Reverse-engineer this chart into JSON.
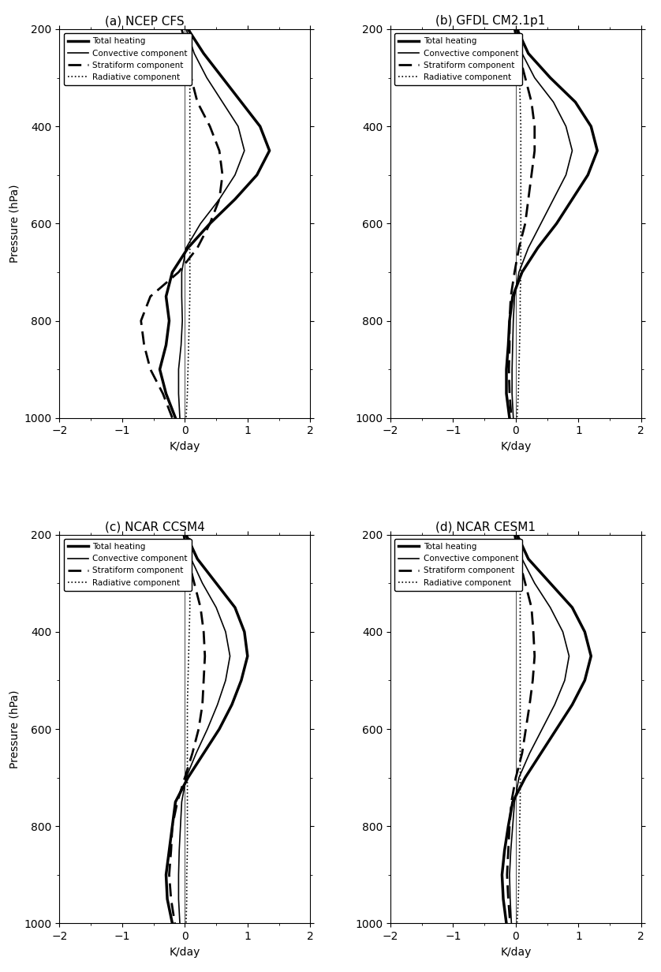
{
  "panels": [
    {
      "title": "(a) NCEP CFS",
      "pressure": [
        200,
        250,
        300,
        350,
        400,
        450,
        500,
        550,
        600,
        650,
        700,
        750,
        800,
        850,
        900,
        950,
        1000
      ],
      "total": [
        0.05,
        0.3,
        0.6,
        0.9,
        1.2,
        1.35,
        1.15,
        0.8,
        0.4,
        0.05,
        -0.2,
        -0.3,
        -0.25,
        -0.3,
        -0.4,
        -0.3,
        -0.15
      ],
      "convective": [
        0.02,
        0.15,
        0.35,
        0.6,
        0.85,
        0.95,
        0.8,
        0.55,
        0.25,
        0.02,
        -0.05,
        -0.05,
        -0.04,
        -0.06,
        -0.1,
        -0.1,
        -0.08
      ],
      "stratiform": [
        -0.05,
        0.05,
        0.1,
        0.2,
        0.4,
        0.55,
        0.6,
        0.55,
        0.4,
        0.2,
        -0.1,
        -0.55,
        -0.7,
        -0.65,
        -0.55,
        -0.35,
        -0.2
      ],
      "radiative": [
        0.08,
        0.08,
        0.08,
        0.08,
        0.08,
        0.08,
        0.08,
        0.08,
        0.08,
        0.08,
        0.08,
        0.08,
        0.07,
        0.06,
        0.05,
        0.04,
        0.02
      ]
    },
    {
      "title": "(b) GFDL CM2.1p1",
      "pressure": [
        200,
        250,
        300,
        350,
        400,
        450,
        500,
        550,
        600,
        650,
        700,
        750,
        800,
        850,
        900,
        950,
        1000
      ],
      "total": [
        0.02,
        0.2,
        0.55,
        0.95,
        1.2,
        1.3,
        1.15,
        0.9,
        0.65,
        0.35,
        0.1,
        -0.05,
        -0.1,
        -0.12,
        -0.15,
        -0.15,
        -0.1
      ],
      "convective": [
        0.01,
        0.1,
        0.3,
        0.6,
        0.8,
        0.9,
        0.8,
        0.6,
        0.4,
        0.2,
        0.05,
        -0.02,
        -0.04,
        -0.05,
        -0.06,
        -0.06,
        -0.04
      ],
      "stratiform": [
        -0.02,
        0.05,
        0.15,
        0.25,
        0.3,
        0.3,
        0.25,
        0.2,
        0.15,
        0.05,
        -0.02,
        -0.08,
        -0.1,
        -0.1,
        -0.11,
        -0.1,
        -0.07
      ],
      "radiative": [
        0.05,
        0.05,
        0.06,
        0.07,
        0.08,
        0.08,
        0.08,
        0.08,
        0.08,
        0.08,
        0.08,
        0.07,
        0.07,
        0.06,
        0.05,
        0.04,
        0.02
      ]
    },
    {
      "title": "(c) NCAR CCSM4",
      "pressure": [
        200,
        250,
        300,
        350,
        400,
        450,
        500,
        550,
        600,
        650,
        700,
        750,
        800,
        850,
        900,
        950,
        1000
      ],
      "total": [
        0.02,
        0.2,
        0.5,
        0.8,
        0.95,
        1.0,
        0.9,
        0.75,
        0.55,
        0.3,
        0.05,
        -0.15,
        -0.2,
        -0.25,
        -0.3,
        -0.28,
        -0.2
      ],
      "convective": [
        0.01,
        0.1,
        0.28,
        0.5,
        0.65,
        0.72,
        0.65,
        0.52,
        0.36,
        0.18,
        0.02,
        -0.05,
        -0.07,
        -0.09,
        -0.1,
        -0.1,
        -0.08
      ],
      "stratiform": [
        -0.02,
        0.05,
        0.15,
        0.25,
        0.3,
        0.32,
        0.3,
        0.28,
        0.22,
        0.12,
        0.0,
        -0.12,
        -0.2,
        -0.22,
        -0.25,
        -0.22,
        -0.16
      ],
      "radiative": [
        0.08,
        0.08,
        0.08,
        0.08,
        0.07,
        0.06,
        0.05,
        0.04,
        0.04,
        0.04,
        0.04,
        0.04,
        0.04,
        0.04,
        0.03,
        0.03,
        0.02
      ]
    },
    {
      "title": "(d) NCAR CESM1",
      "pressure": [
        200,
        250,
        300,
        350,
        400,
        450,
        500,
        550,
        600,
        650,
        700,
        750,
        800,
        850,
        900,
        950,
        1000
      ],
      "total": [
        0.02,
        0.2,
        0.55,
        0.9,
        1.1,
        1.2,
        1.1,
        0.9,
        0.65,
        0.4,
        0.15,
        -0.05,
        -0.12,
        -0.18,
        -0.22,
        -0.2,
        -0.15
      ],
      "convective": [
        0.01,
        0.1,
        0.3,
        0.55,
        0.75,
        0.85,
        0.78,
        0.62,
        0.42,
        0.22,
        0.05,
        -0.02,
        -0.05,
        -0.08,
        -0.1,
        -0.09,
        -0.07
      ],
      "stratiform": [
        -0.02,
        0.05,
        0.15,
        0.25,
        0.28,
        0.3,
        0.27,
        0.22,
        0.16,
        0.1,
        0.0,
        -0.07,
        -0.1,
        -0.12,
        -0.14,
        -0.12,
        -0.09
      ],
      "radiative": [
        0.06,
        0.06,
        0.07,
        0.07,
        0.07,
        0.07,
        0.07,
        0.07,
        0.07,
        0.07,
        0.07,
        0.07,
        0.06,
        0.06,
        0.05,
        0.04,
        0.02
      ]
    }
  ],
  "legend_labels": [
    "Total heating",
    "Convective component",
    "Stratiform component",
    "Radiative component"
  ],
  "xlim": [
    -2,
    2
  ],
  "xlabel": "K/day",
  "ylabel": "Pressure (hPa)",
  "yticks": [
    200,
    400,
    600,
    800,
    1000
  ],
  "xticks": [
    -2,
    -1,
    0,
    1,
    2
  ],
  "background_color": "#ffffff",
  "line_color": "#000000"
}
